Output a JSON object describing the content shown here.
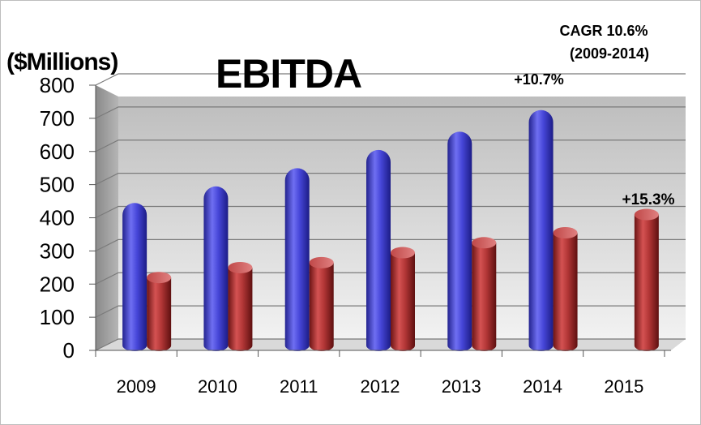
{
  "chart_data": {
    "type": "bar",
    "title": "EBITDA",
    "ylabel": "($Millions)",
    "xlabel": "",
    "ylim": [
      0,
      800
    ],
    "yticks": [
      0,
      100,
      200,
      300,
      400,
      500,
      600,
      700,
      800
    ],
    "categories": [
      "2009",
      "2010",
      "2011",
      "2012",
      "2013",
      "2014",
      "2015"
    ],
    "series": [
      {
        "values": [
          430,
          480,
          535,
          590,
          645,
          710,
          null
        ],
        "color": "#3f3fd6"
      },
      {
        "values": [
          205,
          235,
          250,
          280,
          310,
          340,
          395
        ],
        "color": "#b33a3a"
      }
    ],
    "grid": true,
    "annotations": {
      "cagr_line1": "CAGR 10.6%",
      "cagr_line2": "(2009-2014)",
      "growth_2014": "+10.7%",
      "growth_2015": "+15.3%"
    }
  }
}
